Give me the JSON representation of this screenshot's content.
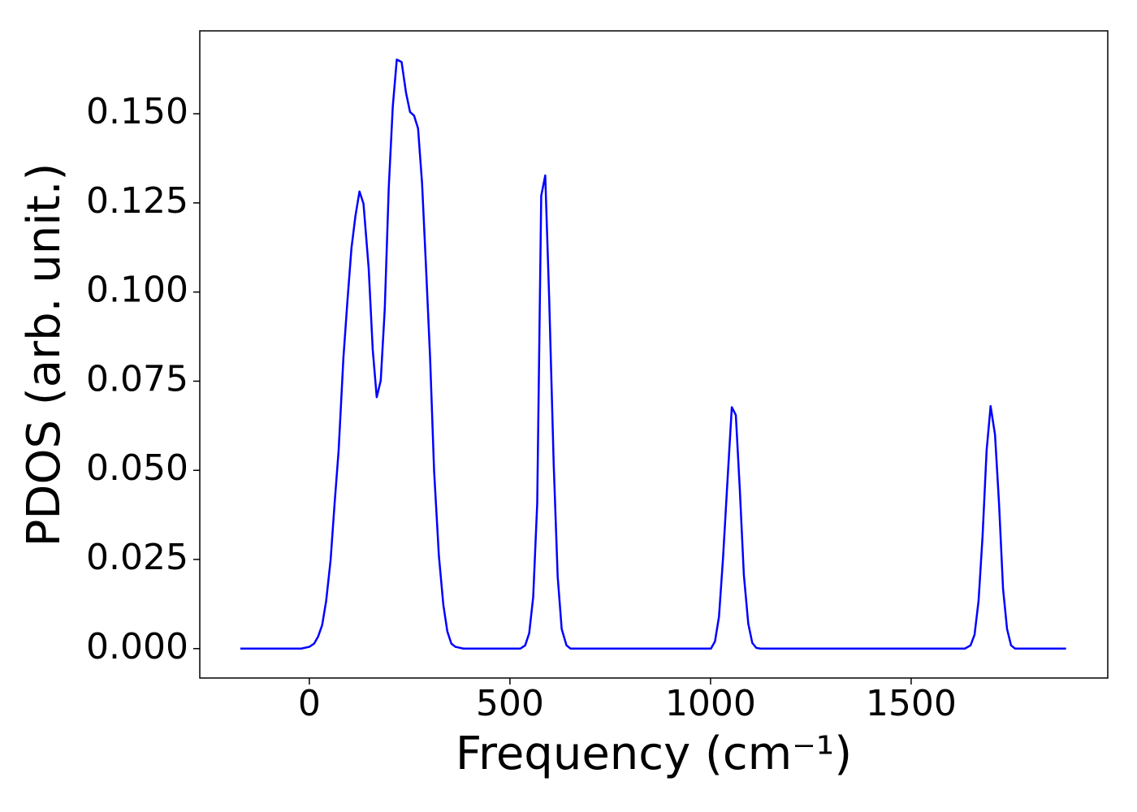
{
  "chart_data": {
    "type": "line",
    "x_label": "Frequency (cm⁻¹)",
    "y_label": "PDOS (arb. unit.)",
    "x": [
      -172,
      -20,
      0,
      12,
      22,
      32,
      42,
      53,
      63,
      73,
      85,
      95,
      105,
      115,
      125,
      135,
      148,
      158,
      168,
      178,
      188,
      198,
      208,
      218,
      230,
      241,
      251,
      261,
      271,
      281,
      291,
      301,
      311,
      323,
      334,
      344,
      354,
      364,
      384,
      526,
      538,
      548,
      558,
      568,
      578,
      588,
      598,
      609,
      619,
      629,
      641,
      651,
      1001,
      1011,
      1021,
      1031,
      1043,
      1053,
      1063,
      1073,
      1083,
      1094,
      1104,
      1114,
      1124,
      1634,
      1648,
      1658,
      1668,
      1678,
      1688,
      1698,
      1709,
      1719,
      1729,
      1739,
      1749,
      1759,
      1886
    ],
    "series": [
      {
        "color": "#0000ff",
        "values": [
          0,
          0,
          0.0005,
          0.0014,
          0.0034,
          0.0066,
          0.0134,
          0.0248,
          0.0407,
          0.0555,
          0.0816,
          0.0975,
          0.1123,
          0.1214,
          0.1282,
          0.1248,
          0.1066,
          0.0839,
          0.0705,
          0.0752,
          0.0952,
          0.1293,
          0.152,
          0.1652,
          0.1645,
          0.1559,
          0.1505,
          0.1495,
          0.1459,
          0.1305,
          0.1066,
          0.0816,
          0.0498,
          0.0259,
          0.0123,
          0.0048,
          0.0014,
          0.0005,
          0,
          0,
          0.0009,
          0.0043,
          0.0145,
          0.0407,
          0.127,
          0.1327,
          0.0975,
          0.052,
          0.0202,
          0.0055,
          0.0009,
          0,
          0,
          0.002,
          0.0089,
          0.0252,
          0.0486,
          0.0677,
          0.0655,
          0.0445,
          0.0207,
          0.007,
          0.0016,
          0.0002,
          0,
          0,
          0.0009,
          0.0039,
          0.0134,
          0.0316,
          0.0555,
          0.068,
          0.06,
          0.0407,
          0.0168,
          0.0055,
          0.0009,
          0,
          0
        ]
      }
    ],
    "xlim": [
      -273,
      1990
    ],
    "ylim": [
      -0.00825,
      0.17325
    ],
    "xticks": [
      0,
      500,
      1000,
      1500
    ],
    "yticks": [
      {
        "value": 0,
        "label": "0.000"
      },
      {
        "value": 0.025,
        "label": "0.025"
      },
      {
        "value": 0.05,
        "label": "0.050"
      },
      {
        "value": 0.075,
        "label": "0.075"
      },
      {
        "value": 0.1,
        "label": "0.100"
      },
      {
        "value": 0.125,
        "label": "0.125"
      },
      {
        "value": 0.15,
        "label": "0.150"
      }
    ],
    "grid": false
  }
}
